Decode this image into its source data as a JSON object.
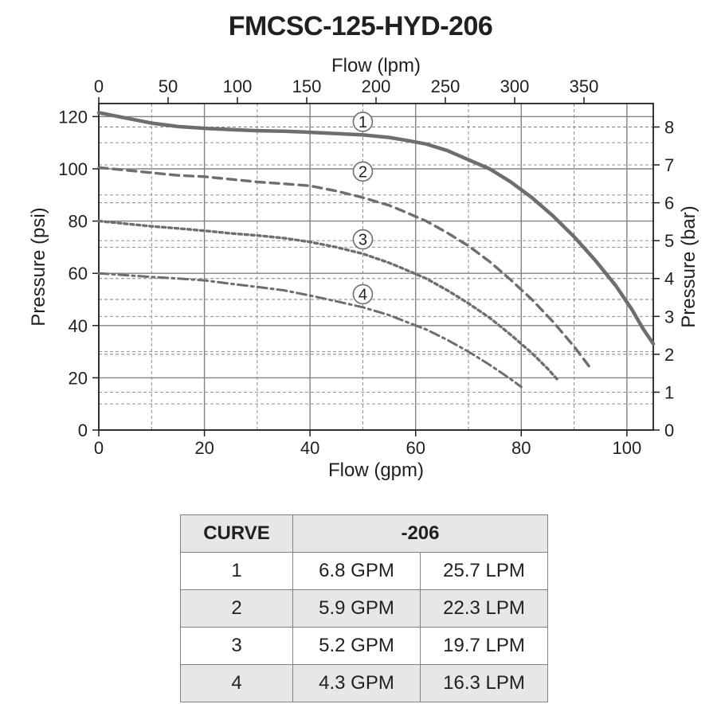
{
  "title": "FMCSC-125-HYD-206",
  "chart": {
    "type": "line",
    "background_color": "#ffffff",
    "frame_color": "#231f20",
    "frame_width": 1.8,
    "major_grid_color": "#808285",
    "major_grid_width": 1.4,
    "minor_grid_color": "#808285",
    "minor_grid_width": 0.9,
    "minor_grid_dash": "4 3",
    "curve_color": "#6d6e71",
    "x_bottom": {
      "label": "Flow (gpm)",
      "min": 0,
      "max": 105,
      "major_ticks": [
        0,
        20,
        40,
        60,
        80,
        100
      ],
      "minor_ticks": [
        10,
        30,
        50,
        70,
        90
      ]
    },
    "x_top": {
      "label": "Flow (lpm)",
      "min": 0,
      "max": 400,
      "ticks": [
        0,
        50,
        100,
        150,
        200,
        250,
        300,
        350
      ]
    },
    "y_left": {
      "label": "Pressure (psi)",
      "min": 0,
      "max": 125,
      "major_ticks": [
        0,
        20,
        40,
        60,
        80,
        100,
        120
      ],
      "minor_ticks": [
        10,
        30,
        50,
        70,
        90,
        110
      ]
    },
    "y_right": {
      "label": "Pressure (bar)",
      "min": 0,
      "max": 8.62,
      "ticks": [
        0,
        1,
        2,
        3,
        4,
        5,
        6,
        7,
        8
      ]
    },
    "series": [
      {
        "id": "1",
        "stroke_width": 4.5,
        "dash": "",
        "points": [
          [
            0,
            121.5
          ],
          [
            5,
            119.5
          ],
          [
            10,
            117.5
          ],
          [
            15,
            116.2
          ],
          [
            20,
            115.5
          ],
          [
            25,
            115
          ],
          [
            30,
            114.6
          ],
          [
            35,
            114.4
          ],
          [
            40,
            114
          ],
          [
            45,
            113.5
          ],
          [
            50,
            113
          ],
          [
            55,
            112
          ],
          [
            58,
            111
          ],
          [
            62,
            109.5
          ],
          [
            66,
            107
          ],
          [
            70,
            103.5
          ],
          [
            74,
            100
          ],
          [
            78,
            95
          ],
          [
            82,
            89
          ],
          [
            86,
            82
          ],
          [
            90,
            74
          ],
          [
            94,
            65
          ],
          [
            98,
            55
          ],
          [
            101,
            46
          ],
          [
            103,
            39
          ],
          [
            105,
            33
          ]
        ],
        "label_at": [
          50,
          118
        ]
      },
      {
        "id": "2",
        "stroke_width": 3.4,
        "dash": "11 7",
        "points": [
          [
            0,
            100.5
          ],
          [
            5,
            99.5
          ],
          [
            10,
            98.5
          ],
          [
            15,
            97.5
          ],
          [
            20,
            97
          ],
          [
            25,
            96
          ],
          [
            30,
            95
          ],
          [
            35,
            94.3
          ],
          [
            40,
            93.5
          ],
          [
            45,
            91.5
          ],
          [
            50,
            89
          ],
          [
            55,
            86
          ],
          [
            58,
            83.5
          ],
          [
            62,
            80
          ],
          [
            66,
            75.5
          ],
          [
            70,
            70.5
          ],
          [
            74,
            64.5
          ],
          [
            78,
            57.5
          ],
          [
            82,
            50
          ],
          [
            86,
            41.5
          ],
          [
            90,
            32
          ],
          [
            93,
            24
          ]
        ],
        "label_at": [
          50,
          99
        ]
      },
      {
        "id": "3",
        "stroke_width": 3.4,
        "dash": "4 4",
        "points": [
          [
            0,
            80
          ],
          [
            5,
            79
          ],
          [
            10,
            78
          ],
          [
            15,
            77.2
          ],
          [
            20,
            76.3
          ],
          [
            25,
            75.3
          ],
          [
            30,
            74.5
          ],
          [
            35,
            73.5
          ],
          [
            40,
            72
          ],
          [
            45,
            70
          ],
          [
            50,
            67.5
          ],
          [
            55,
            64
          ],
          [
            58,
            61.5
          ],
          [
            62,
            58
          ],
          [
            66,
            53.5
          ],
          [
            70,
            48.5
          ],
          [
            74,
            43
          ],
          [
            78,
            36.5
          ],
          [
            82,
            29.5
          ],
          [
            85,
            23.5
          ],
          [
            87,
            19
          ]
        ],
        "label_at": [
          50,
          73
        ]
      },
      {
        "id": "4",
        "stroke_width": 3.0,
        "dash": "12 5 3 5",
        "points": [
          [
            0,
            60
          ],
          [
            5,
            59.3
          ],
          [
            10,
            58.6
          ],
          [
            15,
            58
          ],
          [
            20,
            57.3
          ],
          [
            25,
            56
          ],
          [
            30,
            54.8
          ],
          [
            35,
            53.5
          ],
          [
            40,
            51.5
          ],
          [
            45,
            49.3
          ],
          [
            50,
            47
          ],
          [
            55,
            44
          ],
          [
            58,
            41.6
          ],
          [
            62,
            38.5
          ],
          [
            66,
            34.5
          ],
          [
            70,
            30
          ],
          [
            74,
            25
          ],
          [
            78,
            19.5
          ],
          [
            80,
            16.5
          ]
        ],
        "label_at": [
          50,
          52
        ]
      }
    ]
  },
  "table": {
    "header_curve": "CURVE",
    "header_model": "-206",
    "rows": [
      {
        "curve": "1",
        "gpm": "6.8 GPM",
        "lpm": "25.7 LPM",
        "shade": false
      },
      {
        "curve": "2",
        "gpm": "5.9 GPM",
        "lpm": "22.3 LPM",
        "shade": true
      },
      {
        "curve": "3",
        "gpm": "5.2 GPM",
        "lpm": "19.7 LPM",
        "shade": false
      },
      {
        "curve": "4",
        "gpm": "4.3 GPM",
        "lpm": "16.3 LPM",
        "shade": true
      }
    ]
  }
}
